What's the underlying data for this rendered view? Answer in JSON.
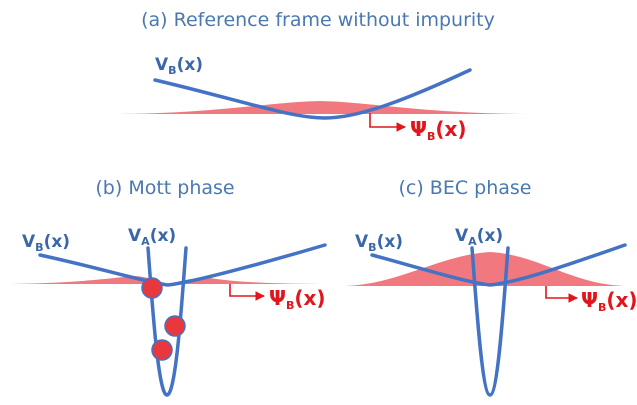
{
  "panels": [
    {
      "title": "(a) Reference frame without impurity",
      "labels": [
        {
          "symbol": "V",
          "sub": "B",
          "arg": "(x)"
        },
        {
          "symbol": "Ψ",
          "sub": "B",
          "arg": "(x)"
        }
      ]
    },
    {
      "title": "(b) Mott phase",
      "labels": [
        {
          "symbol": "V",
          "sub": "B",
          "arg": "(x)"
        },
        {
          "symbol": "V",
          "sub": "A",
          "arg": "(x)"
        },
        {
          "symbol": "Ψ",
          "sub": "B",
          "arg": "(x)"
        }
      ]
    },
    {
      "title": "(c) BEC phase",
      "labels": [
        {
          "symbol": "V",
          "sub": "B",
          "arg": "(x)"
        },
        {
          "symbol": "V",
          "sub": "A",
          "arg": "(x)"
        },
        {
          "symbol": "Ψ",
          "sub": "B",
          "arg": "(x)"
        }
      ]
    }
  ]
}
